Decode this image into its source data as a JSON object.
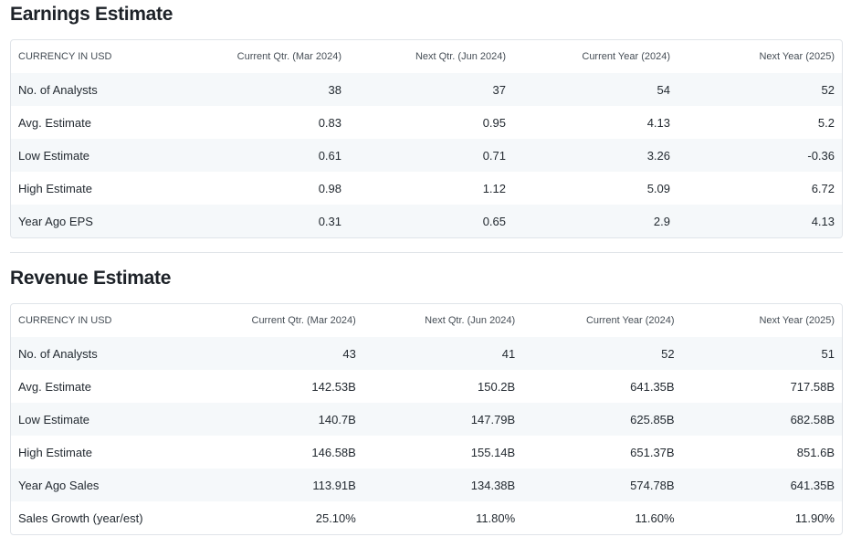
{
  "earnings": {
    "title": "Earnings Estimate",
    "headers": [
      "CURRENCY IN USD",
      "Current Qtr. (Mar 2024)",
      "Next Qtr. (Jun 2024)",
      "Current Year (2024)",
      "Next Year (2025)"
    ],
    "rows": [
      [
        "No. of Analysts",
        "38",
        "37",
        "54",
        "52"
      ],
      [
        "Avg. Estimate",
        "0.83",
        "0.95",
        "4.13",
        "5.2"
      ],
      [
        "Low Estimate",
        "0.61",
        "0.71",
        "3.26",
        "-0.36"
      ],
      [
        "High Estimate",
        "0.98",
        "1.12",
        "5.09",
        "6.72"
      ],
      [
        "Year Ago EPS",
        "0.31",
        "0.65",
        "2.9",
        "4.13"
      ]
    ]
  },
  "revenue": {
    "title": "Revenue Estimate",
    "headers": [
      "CURRENCY IN USD",
      "Current Qtr. (Mar 2024)",
      "Next Qtr. (Jun 2024)",
      "Current Year (2024)",
      "Next Year (2025)"
    ],
    "rows": [
      [
        "No. of Analysts",
        "43",
        "41",
        "52",
        "51"
      ],
      [
        "Avg. Estimate",
        "142.53B",
        "150.2B",
        "641.35B",
        "717.58B"
      ],
      [
        "Low Estimate",
        "140.7B",
        "147.79B",
        "625.85B",
        "682.58B"
      ],
      [
        "High Estimate",
        "146.58B",
        "155.14B",
        "651.37B",
        "851.6B"
      ],
      [
        "Year Ago Sales",
        "113.91B",
        "134.38B",
        "574.78B",
        "641.35B"
      ],
      [
        "Sales Growth (year/est)",
        "25.10%",
        "11.80%",
        "11.60%",
        "11.90%"
      ]
    ]
  }
}
